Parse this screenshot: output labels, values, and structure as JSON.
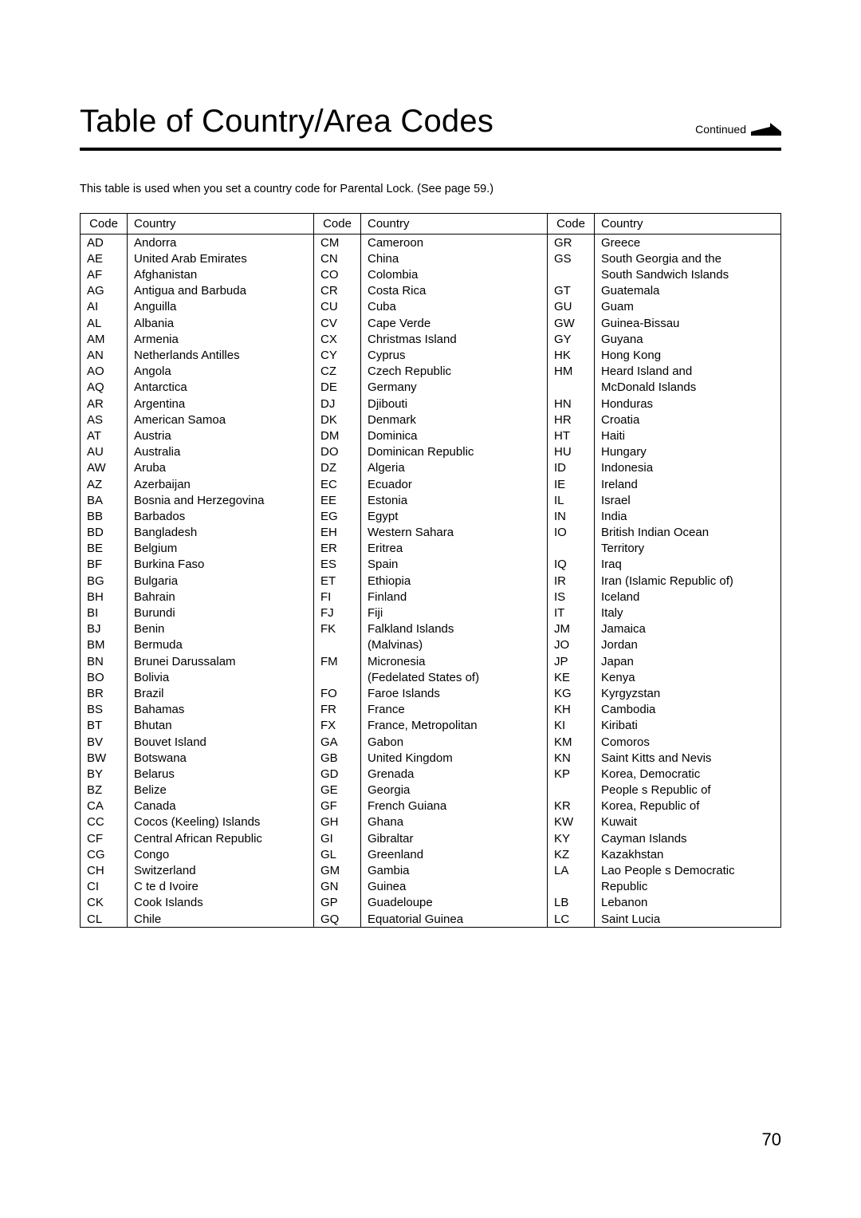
{
  "page": {
    "title": "Table of Country/Area Codes",
    "continued_label": "Continued",
    "caption": "This table is used when you set a country code for Parental Lock. (See page 59.)",
    "page_number": "70"
  },
  "table": {
    "headers": {
      "code": "Code",
      "country": "Country"
    },
    "columns": [
      {
        "rows": [
          {
            "code": "AD",
            "country": "Andorra"
          },
          {
            "code": "AE",
            "country": "United Arab Emirates"
          },
          {
            "code": "AF",
            "country": "Afghanistan"
          },
          {
            "code": "AG",
            "country": "Antigua and Barbuda"
          },
          {
            "code": "AI",
            "country": "Anguilla"
          },
          {
            "code": "AL",
            "country": "Albania"
          },
          {
            "code": "AM",
            "country": "Armenia"
          },
          {
            "code": "AN",
            "country": "Netherlands Antilles"
          },
          {
            "code": "AO",
            "country": "Angola"
          },
          {
            "code": "AQ",
            "country": "Antarctica"
          },
          {
            "code": "AR",
            "country": "Argentina"
          },
          {
            "code": "AS",
            "country": "American Samoa"
          },
          {
            "code": "AT",
            "country": "Austria"
          },
          {
            "code": "AU",
            "country": "Australia"
          },
          {
            "code": "AW",
            "country": "Aruba"
          },
          {
            "code": "AZ",
            "country": "Azerbaijan"
          },
          {
            "code": "BA",
            "country": "Bosnia and Herzegovina"
          },
          {
            "code": "BB",
            "country": "Barbados"
          },
          {
            "code": "BD",
            "country": "Bangladesh"
          },
          {
            "code": "BE",
            "country": "Belgium"
          },
          {
            "code": "BF",
            "country": "Burkina Faso"
          },
          {
            "code": "BG",
            "country": "Bulgaria"
          },
          {
            "code": "BH",
            "country": "Bahrain"
          },
          {
            "code": "BI",
            "country": "Burundi"
          },
          {
            "code": "BJ",
            "country": "Benin"
          },
          {
            "code": "BM",
            "country": "Bermuda"
          },
          {
            "code": "BN",
            "country": "Brunei Darussalam"
          },
          {
            "code": "BO",
            "country": "Bolivia"
          },
          {
            "code": "BR",
            "country": "Brazil"
          },
          {
            "code": "BS",
            "country": "Bahamas"
          },
          {
            "code": "BT",
            "country": "Bhutan"
          },
          {
            "code": "BV",
            "country": "Bouvet Island"
          },
          {
            "code": "BW",
            "country": "Botswana"
          },
          {
            "code": "BY",
            "country": "Belarus"
          },
          {
            "code": "BZ",
            "country": "Belize"
          },
          {
            "code": "CA",
            "country": "Canada"
          },
          {
            "code": "CC",
            "country": "Cocos (Keeling) Islands"
          },
          {
            "code": "CF",
            "country": "Central African Republic"
          },
          {
            "code": "CG",
            "country": "Congo"
          },
          {
            "code": "CH",
            "country": "Switzerland"
          },
          {
            "code": "CI",
            "country": "C te d Ivoire"
          },
          {
            "code": "CK",
            "country": "Cook Islands"
          },
          {
            "code": "CL",
            "country": "Chile"
          }
        ]
      },
      {
        "rows": [
          {
            "code": "CM",
            "country": "Cameroon"
          },
          {
            "code": "CN",
            "country": "China"
          },
          {
            "code": "CO",
            "country": "Colombia"
          },
          {
            "code": "CR",
            "country": "Costa Rica"
          },
          {
            "code": "CU",
            "country": "Cuba"
          },
          {
            "code": "CV",
            "country": "Cape Verde"
          },
          {
            "code": "CX",
            "country": "Christmas Island"
          },
          {
            "code": "CY",
            "country": "Cyprus"
          },
          {
            "code": "CZ",
            "country": "Czech Republic"
          },
          {
            "code": "DE",
            "country": "Germany"
          },
          {
            "code": "DJ",
            "country": "Djibouti"
          },
          {
            "code": "DK",
            "country": "Denmark"
          },
          {
            "code": "DM",
            "country": "Dominica"
          },
          {
            "code": "DO",
            "country": "Dominican Republic"
          },
          {
            "code": "DZ",
            "country": "Algeria"
          },
          {
            "code": "EC",
            "country": "Ecuador"
          },
          {
            "code": "EE",
            "country": "Estonia"
          },
          {
            "code": "EG",
            "country": "Egypt"
          },
          {
            "code": "EH",
            "country": "Western Sahara"
          },
          {
            "code": "ER",
            "country": "Eritrea"
          },
          {
            "code": "ES",
            "country": "Spain"
          },
          {
            "code": "ET",
            "country": "Ethiopia"
          },
          {
            "code": "FI",
            "country": "Finland"
          },
          {
            "code": "FJ",
            "country": "Fiji"
          },
          {
            "code": "FK",
            "country": "Falkland Islands"
          },
          {
            "code": "",
            "country": "(Malvinas)"
          },
          {
            "code": "FM",
            "country": "Micronesia"
          },
          {
            "code": "",
            "country": "(Fedelated States of)"
          },
          {
            "code": "FO",
            "country": "Faroe Islands"
          },
          {
            "code": "FR",
            "country": "France"
          },
          {
            "code": "FX",
            "country": "France, Metropolitan"
          },
          {
            "code": "GA",
            "country": "Gabon"
          },
          {
            "code": "GB",
            "country": "United Kingdom"
          },
          {
            "code": "GD",
            "country": "Grenada"
          },
          {
            "code": "GE",
            "country": "Georgia"
          },
          {
            "code": "GF",
            "country": "French Guiana"
          },
          {
            "code": "GH",
            "country": "Ghana"
          },
          {
            "code": "GI",
            "country": "Gibraltar"
          },
          {
            "code": "GL",
            "country": "Greenland"
          },
          {
            "code": "GM",
            "country": "Gambia"
          },
          {
            "code": "GN",
            "country": "Guinea"
          },
          {
            "code": "GP",
            "country": "Guadeloupe"
          },
          {
            "code": "GQ",
            "country": "Equatorial Guinea"
          }
        ]
      },
      {
        "rows": [
          {
            "code": "GR",
            "country": "Greece"
          },
          {
            "code": "GS",
            "country": "South Georgia and the"
          },
          {
            "code": "",
            "country": "South Sandwich Islands"
          },
          {
            "code": "GT",
            "country": "Guatemala"
          },
          {
            "code": "GU",
            "country": "Guam"
          },
          {
            "code": "GW",
            "country": "Guinea-Bissau"
          },
          {
            "code": "GY",
            "country": "Guyana"
          },
          {
            "code": "HK",
            "country": "Hong Kong"
          },
          {
            "code": "HM",
            "country": "Heard Island and"
          },
          {
            "code": "",
            "country": "McDonald Islands"
          },
          {
            "code": "HN",
            "country": "Honduras"
          },
          {
            "code": "HR",
            "country": "Croatia"
          },
          {
            "code": "HT",
            "country": "Haiti"
          },
          {
            "code": "HU",
            "country": "Hungary"
          },
          {
            "code": "ID",
            "country": "Indonesia"
          },
          {
            "code": "IE",
            "country": "Ireland"
          },
          {
            "code": "IL",
            "country": "Israel"
          },
          {
            "code": "IN",
            "country": "India"
          },
          {
            "code": "IO",
            "country": "British Indian Ocean"
          },
          {
            "code": "",
            "country": "Territory"
          },
          {
            "code": "IQ",
            "country": "Iraq"
          },
          {
            "code": "IR",
            "country": "Iran (Islamic Republic of)"
          },
          {
            "code": "IS",
            "country": "Iceland"
          },
          {
            "code": "IT",
            "country": "Italy"
          },
          {
            "code": "JM",
            "country": "Jamaica"
          },
          {
            "code": "JO",
            "country": "Jordan"
          },
          {
            "code": "JP",
            "country": "Japan"
          },
          {
            "code": "KE",
            "country": "Kenya"
          },
          {
            "code": "KG",
            "country": "Kyrgyzstan"
          },
          {
            "code": "KH",
            "country": "Cambodia"
          },
          {
            "code": "KI",
            "country": "Kiribati"
          },
          {
            "code": "KM",
            "country": "Comoros"
          },
          {
            "code": "KN",
            "country": "Saint Kitts and Nevis"
          },
          {
            "code": "KP",
            "country": "Korea, Democratic"
          },
          {
            "code": "",
            "country": "People s Republic of"
          },
          {
            "code": "KR",
            "country": "Korea, Republic of"
          },
          {
            "code": "KW",
            "country": "Kuwait"
          },
          {
            "code": "KY",
            "country": "Cayman Islands"
          },
          {
            "code": "KZ",
            "country": "Kazakhstan"
          },
          {
            "code": "LA",
            "country": "Lao People s Democratic"
          },
          {
            "code": "",
            "country": "Republic"
          },
          {
            "code": "LB",
            "country": "Lebanon"
          },
          {
            "code": "LC",
            "country": "Saint Lucia"
          }
        ]
      }
    ]
  },
  "style": {
    "background_color": "#ffffff",
    "text_color": "#000000",
    "border_color": "#000000",
    "title_fontsize": 40,
    "body_fontsize": 15,
    "caption_fontsize": 14.5,
    "page_number_fontsize": 22,
    "arrow_fill": "#000000"
  }
}
